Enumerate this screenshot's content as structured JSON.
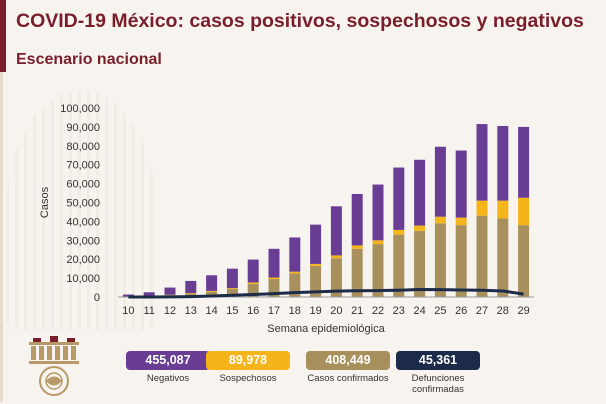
{
  "header": {
    "title": "COVID-19 México: casos positivos, sospechosos y negativos",
    "subtitle": "Escenario nacional"
  },
  "colors": {
    "negativos": "#6a3d94",
    "sospechosos": "#f4b41a",
    "confirmados": "#a8905c",
    "defunciones": "#1c2b4a",
    "brand": "#7a1e2c"
  },
  "legend": [
    {
      "value": "455,087",
      "label": "Negativos",
      "color": "#6a3d94"
    },
    {
      "value": "89,978",
      "label": "Sospechosos",
      "color": "#f4b41a"
    },
    {
      "value": "408,449",
      "label": "Casos confirmados",
      "color": "#a8905c"
    },
    {
      "value": "45,361",
      "label": "Defunciones confirmadas",
      "color": "#1c2b4a"
    }
  ],
  "chart_data": {
    "type": "bar",
    "stacked": true,
    "x": [
      10,
      11,
      12,
      13,
      14,
      15,
      16,
      17,
      18,
      19,
      20,
      21,
      22,
      23,
      24,
      25,
      26,
      27,
      28,
      29
    ],
    "xlabel": "Semana epidemiológica",
    "ylabel": "Casos",
    "ylim": [
      0,
      100000
    ],
    "yticks": [
      "0",
      "10,000",
      "20,000",
      "30,000",
      "40,000",
      "50,000",
      "60,000",
      "70,000",
      "80,000",
      "90,000",
      "100,000"
    ],
    "grid": false,
    "series": [
      {
        "name": "Casos confirmados",
        "kind": "bar",
        "color": "#a8905c",
        "values": [
          100,
          300,
          1000,
          1800,
          2800,
          4200,
          7000,
          9500,
          12500,
          16500,
          20500,
          25500,
          28000,
          33000,
          35000,
          39000,
          38000,
          43000,
          41500,
          38000
        ]
      },
      {
        "name": "Sospechosos",
        "kind": "bar",
        "color": "#f4b41a",
        "values": [
          0,
          100,
          200,
          300,
          400,
          500,
          700,
          800,
          900,
          1000,
          1500,
          1800,
          2000,
          2500,
          2800,
          3500,
          4000,
          8000,
          9500,
          14500
        ]
      },
      {
        "name": "Negativos",
        "kind": "bar",
        "color": "#6a3d94",
        "values": [
          1200,
          2100,
          3800,
          6400,
          8300,
          10300,
          12100,
          15200,
          18100,
          20800,
          26000,
          27200,
          29500,
          33000,
          34800,
          37000,
          35500,
          40500,
          39500,
          37500
        ]
      },
      {
        "name": "Defunciones confirmadas",
        "kind": "line",
        "color": "#1c2b4a",
        "values": [
          0,
          30,
          80,
          200,
          500,
          900,
          1300,
          1800,
          2300,
          2700,
          3100,
          3300,
          3400,
          3600,
          4000,
          3900,
          3700,
          3600,
          3200,
          1500
        ]
      }
    ]
  }
}
